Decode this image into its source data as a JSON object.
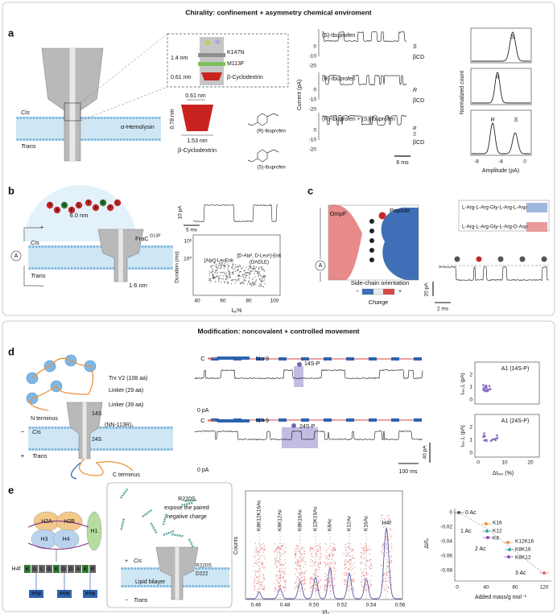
{
  "sections": [
    {
      "title": "Chirality: confinement + asymmetry chemical enviroment"
    },
    {
      "title": "Modification: noncovalent + controlled movement"
    }
  ],
  "panel_a": {
    "texts": [
      "a",
      "1.4 nm",
      "K147N",
      "M113F",
      "0.61 nm",
      "β-Cyclodextrin",
      "α-Hemolysin",
      "Cis",
      "Trans",
      "0.61 nm",
      "0.78 nm",
      "1.53 nm",
      "β-Cyclodextrin",
      "(R)-Ibuprofen",
      "(S)-Ibuprofen",
      "(S)-Ibuprofen",
      "(R)-Ibuprofen",
      "(R)-Ibuprofen + (S)-Ibuprofen",
      "S",
      "βCD",
      "R",
      "βCD",
      "R",
      "S",
      "βCD",
      "Current (pA)",
      "0",
      "-10",
      "-20",
      "0",
      "-10",
      "-20",
      "0",
      "-10",
      "-20",
      "6 ms",
      "S",
      "R",
      "R",
      "S",
      "Normalized count",
      "-8",
      "-4",
      "0",
      "Amplitude (pA)"
    ]
  },
  "panel_b": {
    "texts": [
      "b",
      "6.0 nm",
      "FraC",
      "G13F",
      "Cis",
      "Trans",
      "1.6 nm",
      "A",
      "+",
      "−",
      "10 pA",
      "5 ms",
      "Duration (ms)",
      "10²",
      "10⁰",
      "[Ala²]-LeuEnk",
      "[D-Ala², D-Leu⁵]-Enk",
      "(DADLE)",
      "40",
      "60",
      "80",
      "100",
      "Iₑₓ%"
    ],
    "peptide": [
      "Y",
      "A",
      "G",
      "F",
      "L"
    ]
  },
  "panel_c": {
    "texts": [
      "c",
      "OmpF",
      "Peptide",
      "A",
      "Side-chain orientation",
      "Charge",
      "−",
      "+",
      "L-Arg-L-Arg-Gly-L-Arg-L-Asp",
      "L-Arg-L-Arg-Gly-L-Arg-D-Asp",
      "20 pA",
      "2 ms"
    ]
  },
  "panel_d": {
    "texts": [
      "d",
      "Trx V2 (108 aa)",
      "Linker (29 aa)",
      "N terminus",
      "Linker (39 aa)",
      "14S",
      "24S",
      "(NN-113R)₇",
      "Cis",
      "Trans",
      "C terminus",
      "−",
      "+",
      "C",
      "N ×9",
      "14S-P",
      "0 pA",
      "C",
      "N ×9",
      "24S-P",
      "0 pA",
      "40 pA",
      "100 ms",
      "A1 (14S-P)",
      "A1 (24S-P)",
      "Iᵣₑₛ,L (pA)",
      "Iᵣₑₛ,L (pA)",
      "2",
      "1",
      "0",
      "2",
      "1",
      "0",
      "0",
      "10",
      "20",
      "ΔIᵣₑₛ (%)"
    ]
  },
  "panel_e": {
    "texts": [
      "e",
      "H2A",
      "H2B",
      "H3",
      "H4",
      "H1",
      "H4f",
      "R220S",
      "expose the paired",
      "negative charge",
      "Cis",
      "R220S",
      "D222",
      "Lipid bilayer",
      "Trans",
      "+",
      "−",
      "K8K12K16Ac",
      "K8K12Ac",
      "K8K16Ac",
      "K12K16Ac",
      "K8Ac",
      "K12Ac",
      "K16Ac",
      "H4f",
      "Counts",
      "0.46",
      "0.48",
      "0.50",
      "0.52",
      "0.54",
      "0.56",
      "I/I₀",
      "0 Ac",
      "1 Ac",
      "K16",
      "K12",
      "K8",
      "2 Ac",
      "K12K16",
      "K8K16",
      "K8K12",
      "3 Ac",
      "ΔI/I₀",
      "0",
      "-0.02",
      "-0.04",
      "-0.06",
      "-0.08",
      "0",
      "40",
      "80",
      "120",
      "Added mass/g mol⁻¹",
      "PTM",
      "PTM",
      "PTM"
    ],
    "sequence": [
      "K",
      "G",
      "L",
      "G",
      "K",
      "G",
      "G",
      "A",
      "K",
      "R"
    ]
  }
}
